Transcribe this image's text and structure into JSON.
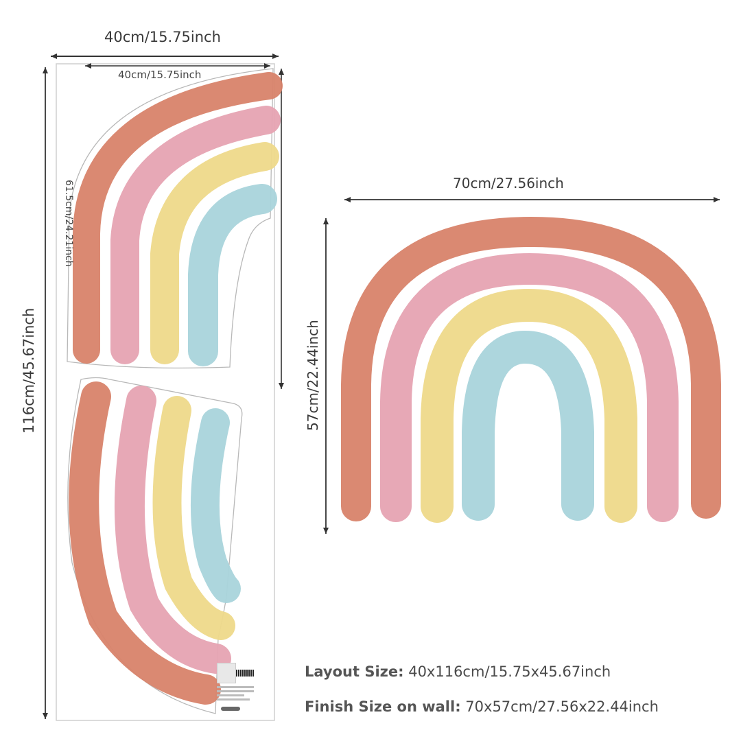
{
  "dimensions": {
    "top_width": "40cm/15.75inch",
    "inner_width": "40cm/15.75inch",
    "left_height": "116cm/45.67inch",
    "inner_height": "61.5cm/24.21inch",
    "right_width": "70cm/27.56inch",
    "right_height": "57cm/22.44inch"
  },
  "info": {
    "layout_label": "Layout Size:",
    "layout_value": "40x116cm/15.75x45.67inch",
    "finish_label": "Finish Size on wall:",
    "finish_value": "70x57cm/27.56x22.44inch"
  },
  "colors": {
    "terracotta": "#d8836a",
    "pink": "#e6a3b2",
    "yellow": "#eed98a",
    "blue": "#a9d4db",
    "line": "#333333",
    "sheet_outline": "#bbbbbb"
  }
}
